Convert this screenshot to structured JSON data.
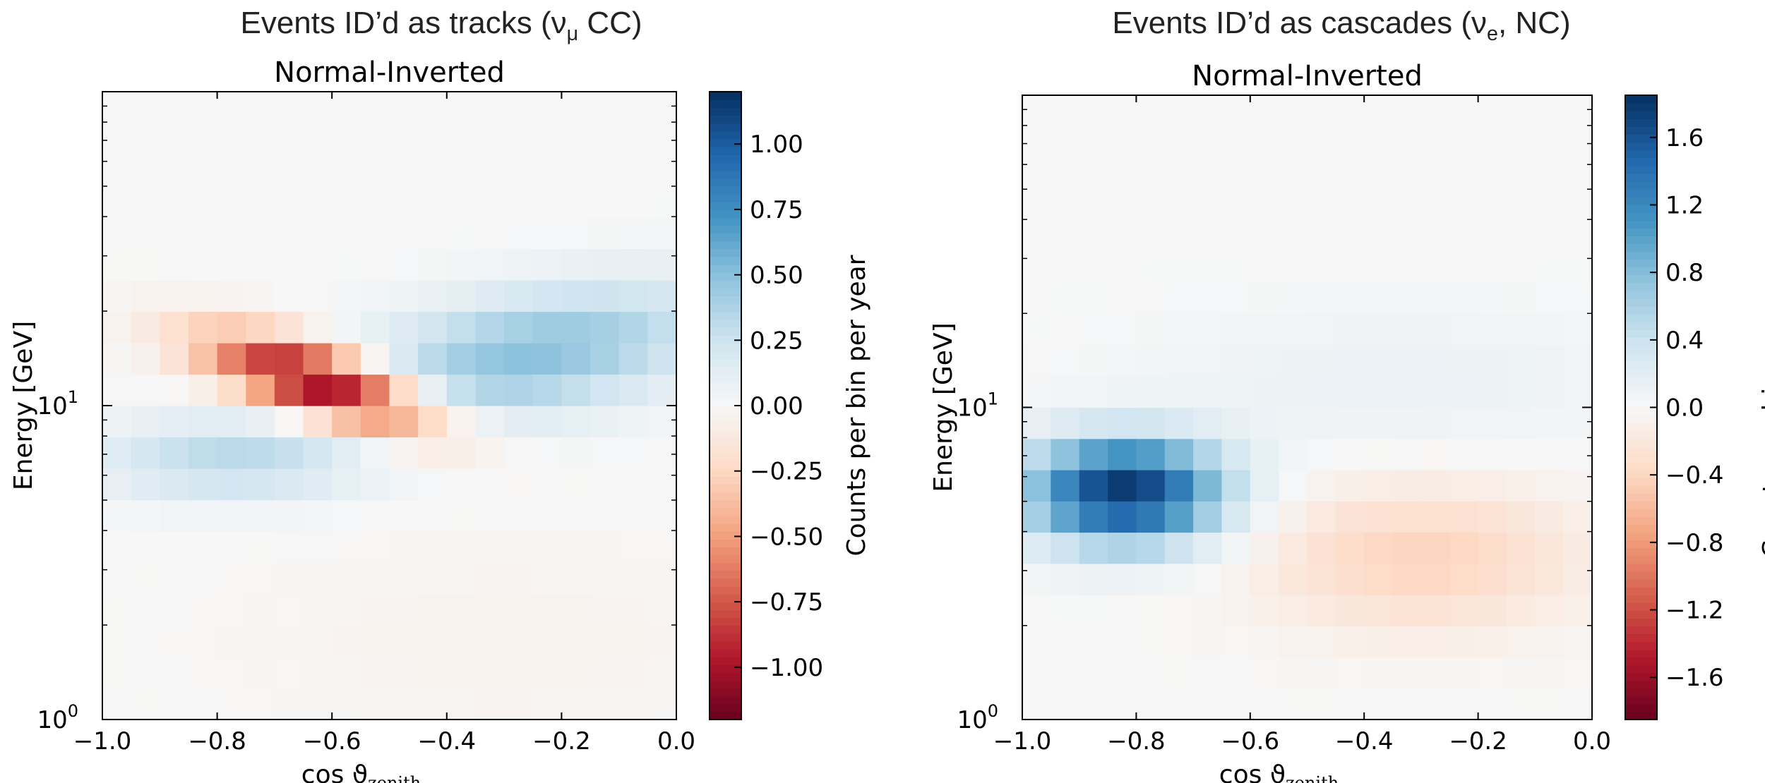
{
  "chart_data": [
    {
      "type": "heatmap",
      "heading": {
        "pre": "Events ID’d as tracks (ν",
        "sub": "μ",
        "post": " CC)"
      },
      "title": "Normal-Inverted",
      "xlabel": "cos ϑ",
      "xlabel_sub": "zenith",
      "ylabel": "Energy [GeV]",
      "colorbar_label": "Counts per bin per year",
      "x_range": [
        -1.0,
        0.0
      ],
      "y_range": [
        1,
        100
      ],
      "y_scale": "log",
      "x_ticks": [
        "−1.0",
        "−0.8",
        "−0.6",
        "−0.4",
        "−0.2",
        "0.0"
      ],
      "y_ticks": [
        "10",
        "10"
      ],
      "y_tick_exponents": [
        "0",
        "1"
      ],
      "colorbar_range": [
        -1.2,
        1.2
      ],
      "colorbar_ticks": [
        "1.00",
        "0.75",
        "0.50",
        "0.25",
        "0.00",
        "−0.25",
        "−0.50",
        "−0.75",
        "−1.00"
      ],
      "colorbar_tick_values": [
        1.0,
        0.75,
        0.5,
        0.25,
        0.0,
        -0.25,
        -0.5,
        -0.75,
        -1.0
      ],
      "grid": "20 x 20 bins, cos zenith -1..0 (step 0.05), log10 energy 0..2 (step 0.1)",
      "features": [
        {
          "x_center": -0.62,
          "y_center_GeV": 10.5,
          "value": -1.1
        },
        {
          "x_center": -0.25,
          "y_center_GeV": 14,
          "value": 0.45
        },
        {
          "x_center": -0.8,
          "y_center_GeV": 6.5,
          "value": 0.35
        }
      ]
    },
    {
      "type": "heatmap",
      "heading": {
        "pre": "Events ID’d as cascades (ν",
        "sub": "e",
        "post": ", NC)"
      },
      "title": "Normal-Inverted",
      "xlabel": "cos ϑ",
      "xlabel_sub": "zenith",
      "ylabel": "Energy [GeV]",
      "colorbar_label": "Counts per bin per year",
      "x_range": [
        -1.0,
        0.0
      ],
      "y_range": [
        1,
        100
      ],
      "y_scale": "log",
      "x_ticks": [
        "−1.0",
        "−0.8",
        "−0.6",
        "−0.4",
        "−0.2",
        "0.0"
      ],
      "y_ticks": [
        "10",
        "10"
      ],
      "y_tick_exponents": [
        "0",
        "1"
      ],
      "colorbar_range": [
        -1.85,
        1.85
      ],
      "colorbar_ticks": [
        "1.6",
        "1.2",
        "0.8",
        "0.4",
        "0.0",
        "−0.4",
        "−0.8",
        "−1.2",
        "−1.6"
      ],
      "colorbar_tick_values": [
        1.6,
        1.2,
        0.8,
        0.4,
        0.0,
        -0.4,
        -0.8,
        -1.2,
        -1.6
      ],
      "grid": "20 x 20 bins, cos zenith -1..0 (step 0.05), log10 energy 0..2 (step 0.1)",
      "features": [
        {
          "x_center": -0.82,
          "y_center_GeV": 5.3,
          "value": 1.8
        },
        {
          "x_center": -0.3,
          "y_center_GeV": 3.3,
          "value": -0.45
        },
        {
          "x_center": -0.3,
          "y_center_GeV": 12,
          "value": 0.12
        }
      ]
    }
  ]
}
